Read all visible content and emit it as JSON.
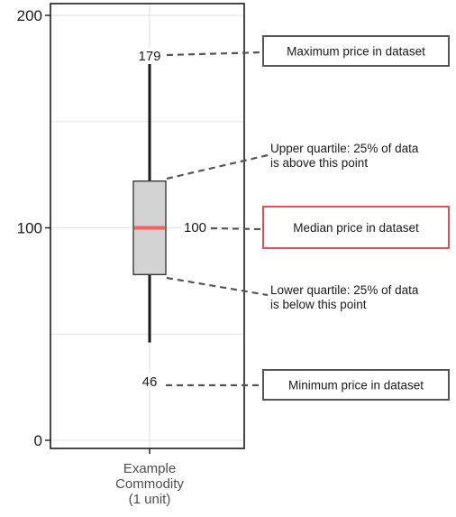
{
  "chart_data": {
    "type": "box",
    "title": "",
    "xlabel": "",
    "ylabel": "",
    "ylim": [
      0,
      200
    ],
    "y_ticks": [
      0,
      100,
      200
    ],
    "grid": true,
    "categories": [
      "Example\nCommodity\n(1 unit)"
    ],
    "box": {
      "min": 46,
      "q1": 78,
      "median": 100,
      "q3": 122,
      "max": 179
    },
    "value_labels": {
      "max": "179",
      "median": "100",
      "min": "46"
    },
    "colors": {
      "box_fill": "#d3d3d3",
      "box_stroke": "#3a3a3a",
      "median": "#f2615f",
      "grid": "#e6e6e6",
      "leader": "#555555",
      "highlight_border": "#e05050",
      "callout_border": "#555555"
    },
    "annotations": [
      {
        "id": "maximum",
        "kind": "box",
        "text": "Maximum price in dataset",
        "highlight": false
      },
      {
        "id": "upper-quartile",
        "kind": "plain",
        "text": "Upper quartile: 25% of data\nis above this point"
      },
      {
        "id": "median",
        "kind": "box",
        "text": "Median price in dataset",
        "highlight": true
      },
      {
        "id": "lower-quartile",
        "kind": "plain",
        "text": "Lower quartile: 25% of data\nis below this point"
      },
      {
        "id": "minimum",
        "kind": "box",
        "text": "Minimum price in dataset",
        "highlight": false
      }
    ]
  }
}
